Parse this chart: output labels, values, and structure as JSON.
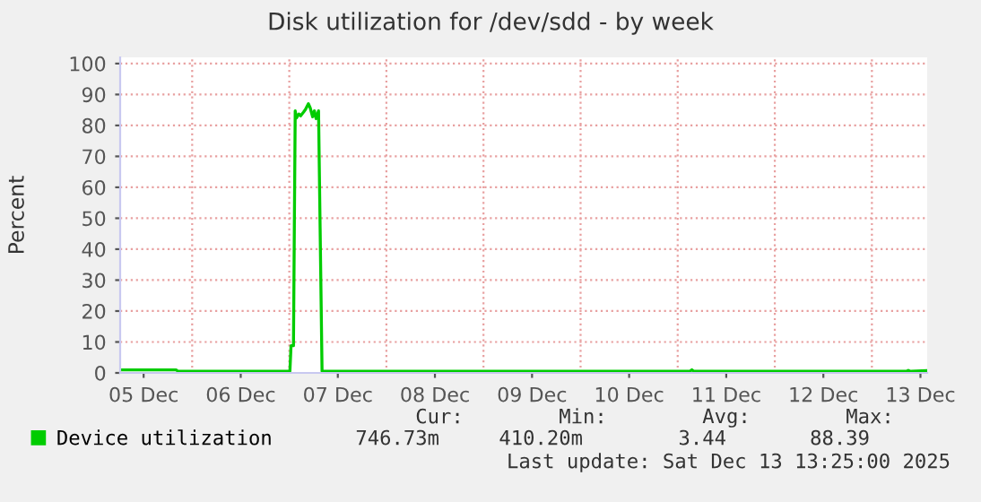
{
  "chart_data": {
    "type": "line",
    "title": "Disk utilization for /dev/sdd - by week",
    "ylabel": "Percent",
    "series": [
      {
        "name": "Device utilization",
        "color": "#00cc00",
        "x": [
          "2025-12-05T06:12",
          "2025-12-05T20:00",
          "2025-12-05T20:30",
          "2025-12-07T00:00",
          "2025-12-07T00:09",
          "2025-12-07T00:26",
          "2025-12-07T01:02",
          "2025-12-07T01:28",
          "2025-12-07T01:46",
          "2025-12-07T02:22",
          "2025-12-07T02:48",
          "2025-12-07T03:32",
          "2025-12-07T03:59",
          "2025-12-07T04:43",
          "2025-12-07T05:10",
          "2025-12-07T05:46",
          "2025-12-07T06:12",
          "2025-12-07T06:38",
          "2025-12-07T07:14",
          "2025-12-07T08:06",
          "2025-12-11T03:00",
          "2025-12-11T03:30",
          "2025-12-11T04:00",
          "2025-12-13T08:30",
          "2025-12-13T09:00",
          "2025-12-13T09:30",
          "2025-12-13T13:25"
        ],
        "values": [
          1.0,
          1.0,
          0.5,
          0.5,
          0.5,
          8.8,
          8.8,
          84.7,
          82.4,
          83.7,
          83.1,
          84.3,
          85.1,
          87.0,
          85.7,
          82.8,
          84.7,
          82.2,
          84.7,
          0.5,
          0.5,
          1.0,
          0.5,
          0.5,
          0.8,
          0.5,
          0.7
        ]
      }
    ],
    "xlim": [
      "2025-12-05T06:12",
      "2025-12-13T13:40"
    ],
    "xticks": [
      {
        "value": "2025-12-05T12:00",
        "label": "05 Dec"
      },
      {
        "value": "2025-12-06T12:00",
        "label": "06 Dec"
      },
      {
        "value": "2025-12-07T12:00",
        "label": "07 Dec"
      },
      {
        "value": "2025-12-08T12:00",
        "label": "08 Dec"
      },
      {
        "value": "2025-12-09T12:00",
        "label": "09 Dec"
      },
      {
        "value": "2025-12-10T12:00",
        "label": "10 Dec"
      },
      {
        "value": "2025-12-11T12:00",
        "label": "11 Dec"
      },
      {
        "value": "2025-12-12T12:00",
        "label": "12 Dec"
      },
      {
        "value": "2025-12-13T12:00",
        "label": "13 Dec"
      }
    ],
    "ylim": [
      0,
      102
    ],
    "yticks": [
      0,
      10,
      20,
      30,
      40,
      50,
      60,
      70,
      80,
      90,
      100
    ],
    "grid": true,
    "legend": "bottom left",
    "marker": "none",
    "line_style": "solid",
    "annotations": [
      "Cur:",
      "746.73m",
      "Min:",
      "410.20m",
      "Avg:",
      "3.44",
      "Max:",
      "88.39",
      "Last update: Sat Dec 13 13:25:00 2025"
    ]
  }
}
